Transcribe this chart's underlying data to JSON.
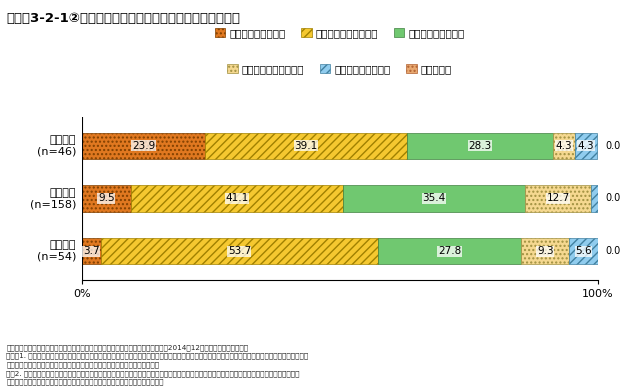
{
  "title": "コラム3-2-1②図　中核的な中小企業への個別支援実施状況",
  "categories": [
    {
      "label": "地方銀行\n(n=46)",
      "values": [
        23.9,
        39.1,
        28.3,
        4.3,
        4.3,
        0.0
      ]
    },
    {
      "label": "信用金庫\n(n=158)",
      "values": [
        9.5,
        41.1,
        35.4,
        12.7,
        1.3,
        0.0
      ]
    },
    {
      "label": "信用組合\n(n=54)",
      "values": [
        3.7,
        53.7,
        27.8,
        9.3,
        5.6,
        0.0
      ]
    }
  ],
  "legend_labels": [
    "大いに実施している",
    "ある程度実施している",
    "どちらともいえない",
    "あまり実施していない",
    "全く実施していない",
    "現在検討中"
  ],
  "segment_styles": [
    {
      "fc": "#E07820",
      "hatch": "....",
      "ec": "#804000"
    },
    {
      "fc": "#F5C830",
      "hatch": "////",
      "ec": "#A08000"
    },
    {
      "fc": "#70C870",
      "hatch": "",
      "ec": "#408040"
    },
    {
      "fc": "#F5D890",
      "hatch": "....",
      "ec": "#A09040"
    },
    {
      "fc": "#90CCEE",
      "hatch": "////",
      "ec": "#4080A0"
    },
    {
      "fc": "#E8A870",
      "hatch": "....",
      "ec": "#B06030"
    }
  ],
  "footnote1": "資料：中小企業庁委託「地域金融機関の中小企業への支援の実態に関する調査」（2014帔12月、ランドブレイン準）",
  "footnote2": "（注）1. 取引先（融資先）の中に、地域の中核的な中小企業が「多数含まれている」、又は、「あまり含まれていない」と回答した地域金融機関に対し",
  "footnote3": "　　　　て、その企業に対する「個別支援」の現在の実施状況を尋ねたもの。",
  "footnote4": "　　2. ここでの「個別支援」とは、「地域への貢献度が高い地域経済の中核的な中小企業に対して、集中的な支援を実施することにより効率的に地",
  "footnote5": "　　　　域経済の活性化を図るという観点から実施される支援のこと」を指す。"
}
